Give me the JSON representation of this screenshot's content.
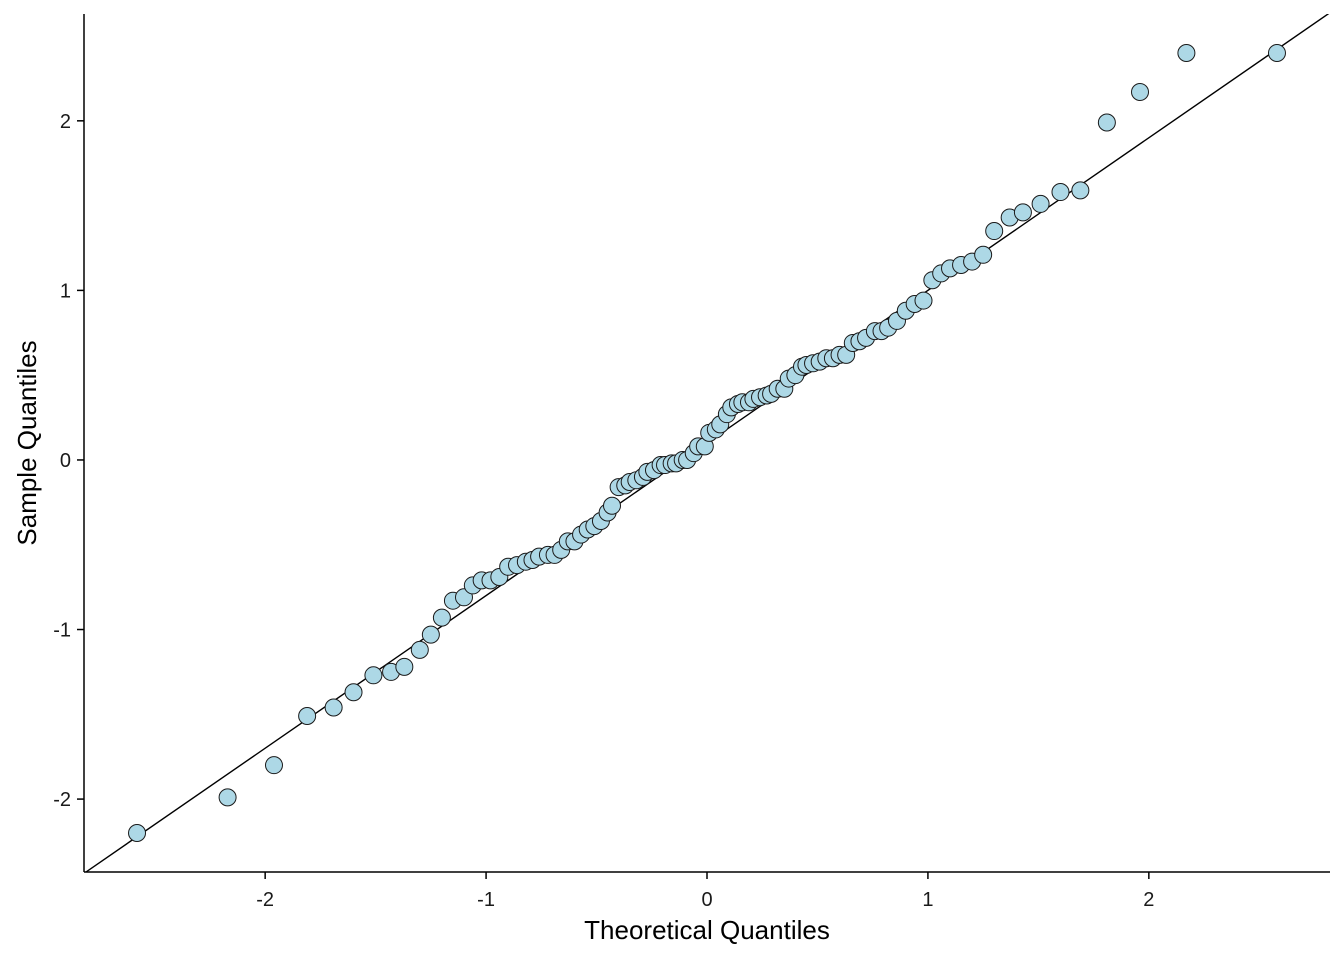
{
  "chart_data": {
    "type": "scatter",
    "title": "",
    "xlabel": "Theoretical Quantiles",
    "ylabel": "Sample Quantiles",
    "xlim": [
      -2.82,
      2.82
    ],
    "ylim": [
      -2.43,
      2.63
    ],
    "x_ticks": [
      -2,
      -1,
      0,
      1,
      2
    ],
    "x_tick_labels": [
      "-2",
      "-1",
      "0",
      "1",
      "2"
    ],
    "y_ticks": [
      -2,
      -1,
      0,
      1,
      2
    ],
    "y_tick_labels": [
      "-2",
      "-1",
      "0",
      "1",
      "2"
    ],
    "grid": false,
    "point_fill": "#add8e6",
    "point_stroke": "#1a1a1a",
    "reference_line": {
      "intercept": 0.1,
      "slope": 0.9,
      "color": "#000000"
    },
    "series": [
      {
        "x": [
          -2.58,
          -2.17,
          -1.96,
          -1.81,
          -1.69,
          -1.6,
          -1.51,
          -1.43,
          -1.37,
          -1.3,
          -1.25,
          -1.2,
          -1.15,
          -1.1,
          -1.06,
          -1.02,
          -0.98,
          -0.94,
          -0.9,
          -0.86,
          -0.82,
          -0.79,
          -0.76,
          -0.72,
          -0.69,
          -0.66,
          -0.63,
          -0.6,
          -0.57,
          -0.54,
          -0.51,
          -0.48,
          -0.45,
          -0.43,
          -0.4,
          -0.37,
          -0.35,
          -0.32,
          -0.29,
          -0.27,
          -0.24,
          -0.21,
          -0.19,
          -0.16,
          -0.14,
          -0.11,
          -0.09,
          -0.06,
          -0.04,
          -0.01,
          0.01,
          0.04,
          0.06,
          0.09,
          0.11,
          0.14,
          0.16,
          0.19,
          0.21,
          0.24,
          0.27,
          0.29,
          0.32,
          0.35,
          0.37,
          0.4,
          0.43,
          0.45,
          0.48,
          0.51,
          0.54,
          0.57,
          0.6,
          0.63,
          0.66,
          0.69,
          0.72,
          0.76,
          0.79,
          0.82,
          0.86,
          0.9,
          0.94,
          0.98,
          1.02,
          1.06,
          1.1,
          1.15,
          1.2,
          1.25,
          1.3,
          1.37,
          1.43,
          1.51,
          1.6,
          1.69,
          1.81,
          1.96,
          2.17,
          2.58
        ],
        "y": [
          -2.2,
          -1.99,
          -1.8,
          -1.51,
          -1.46,
          -1.37,
          -1.27,
          -1.25,
          -1.22,
          -1.12,
          -1.03,
          -0.93,
          -0.83,
          -0.81,
          -0.74,
          -0.71,
          -0.71,
          -0.69,
          -0.63,
          -0.62,
          -0.6,
          -0.59,
          -0.57,
          -0.56,
          -0.56,
          -0.53,
          -0.48,
          -0.48,
          -0.44,
          -0.41,
          -0.39,
          -0.36,
          -0.31,
          -0.27,
          -0.16,
          -0.15,
          -0.13,
          -0.12,
          -0.1,
          -0.07,
          -0.06,
          -0.03,
          -0.03,
          -0.02,
          -0.02,
          0.0,
          0.0,
          0.04,
          0.08,
          0.08,
          0.16,
          0.18,
          0.21,
          0.27,
          0.31,
          0.33,
          0.34,
          0.34,
          0.36,
          0.37,
          0.38,
          0.39,
          0.42,
          0.42,
          0.48,
          0.5,
          0.55,
          0.56,
          0.57,
          0.58,
          0.6,
          0.6,
          0.62,
          0.62,
          0.69,
          0.7,
          0.72,
          0.76,
          0.76,
          0.78,
          0.82,
          0.88,
          0.92,
          0.94,
          1.06,
          1.1,
          1.13,
          1.15,
          1.17,
          1.21,
          1.35,
          1.43,
          1.46,
          1.51,
          1.58,
          1.59,
          1.99,
          2.17,
          2.4,
          2.4
        ]
      }
    ]
  }
}
